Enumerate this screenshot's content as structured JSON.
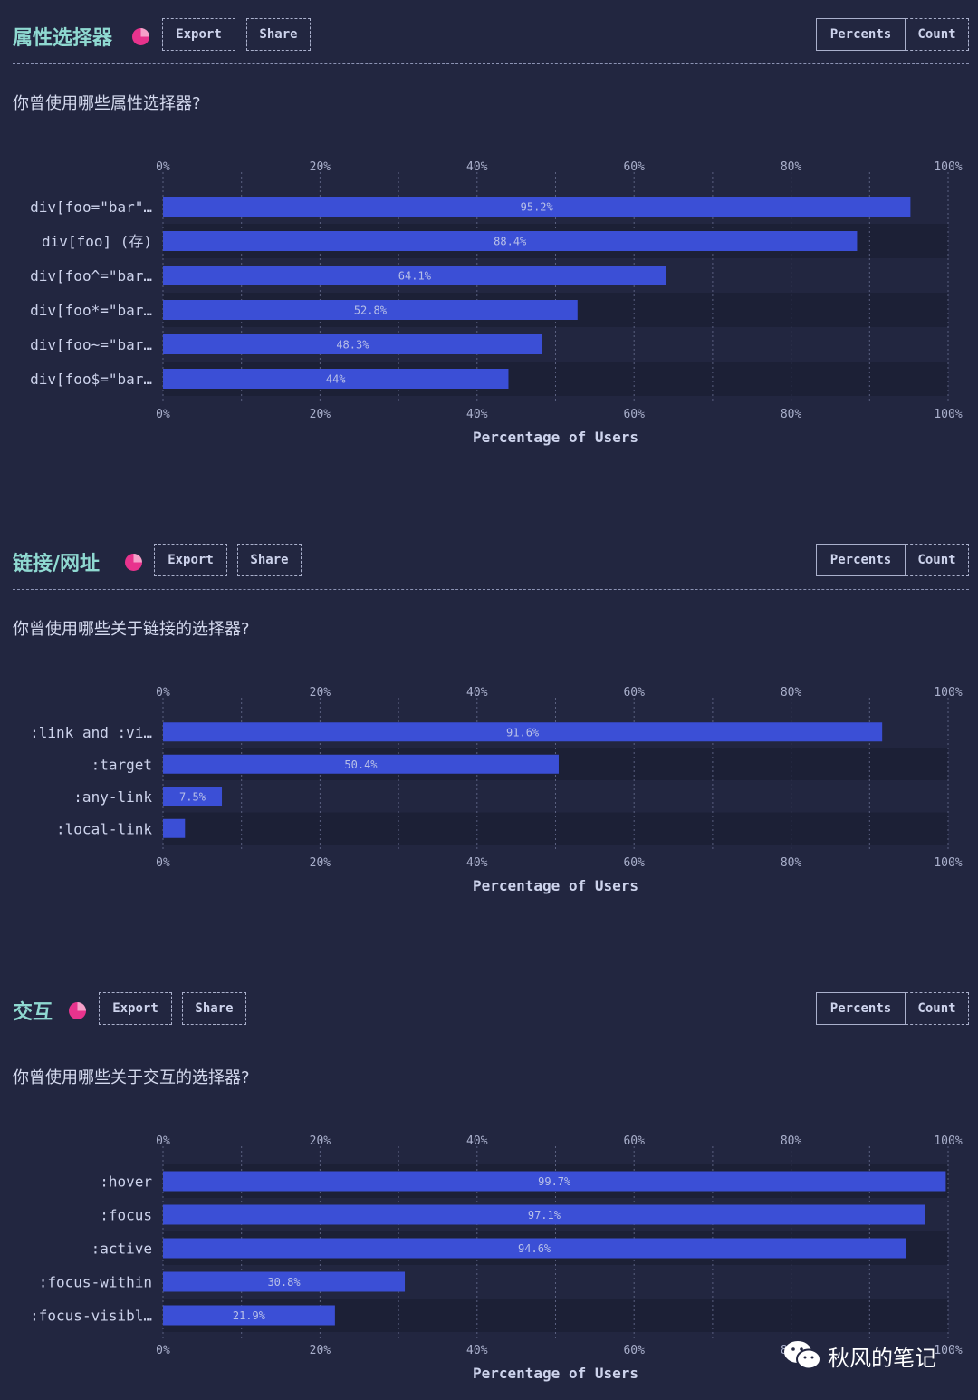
{
  "ui": {
    "export_label": "Export",
    "share_label": "Share",
    "percents_label": "Percents",
    "count_label": "Count",
    "watermark_text": "秋风的笔记",
    "watermark_icon": "wechat-icon",
    "title_icon": "pie-chart-icon"
  },
  "colors": {
    "background": "#222640",
    "bar": "#3b4fd6",
    "row_band": "#1c2036",
    "title": "#8fd9d1",
    "icon_pink": "#e8338d"
  },
  "sections": [
    {
      "title": "属性选择器",
      "question": "你曾使用哪些属性选择器?"
    },
    {
      "title": "链接/网址",
      "question": "你曾使用哪些关于链接的选择器?"
    },
    {
      "title": "交互",
      "question": "你曾使用哪些关于交互的选择器?"
    }
  ],
  "chart_data": [
    {
      "type": "bar",
      "orientation": "horizontal",
      "categories": [
        "div[foo=\"bar\"…",
        "div[foo] (存)",
        "div[foo^=\"bar…",
        "div[foo*=\"bar…",
        "div[foo~=\"bar…",
        "div[foo$=\"bar…"
      ],
      "values": [
        95.2,
        88.4,
        64.1,
        52.8,
        48.3,
        44
      ],
      "value_labels": [
        "95.2%",
        "88.4%",
        "64.1%",
        "52.8%",
        "48.3%",
        "44%"
      ],
      "xticks": [
        "0%",
        "20%",
        "40%",
        "60%",
        "80%",
        "100%"
      ],
      "xlim": [
        0,
        100
      ],
      "xlabel": "Percentage of Users",
      "grid": true
    },
    {
      "type": "bar",
      "orientation": "horizontal",
      "categories": [
        ":link and :vi…",
        ":target",
        ":any-link",
        ":local-link"
      ],
      "values": [
        91.6,
        50.4,
        7.5,
        2.8
      ],
      "value_labels": [
        "91.6%",
        "50.4%",
        "7.5%",
        ""
      ],
      "xticks": [
        "0%",
        "20%",
        "40%",
        "60%",
        "80%",
        "100%"
      ],
      "xlim": [
        0,
        100
      ],
      "xlabel": "Percentage of Users",
      "grid": true
    },
    {
      "type": "bar",
      "orientation": "horizontal",
      "categories": [
        ":hover",
        ":focus",
        ":active",
        ":focus-within",
        ":focus-visibl…"
      ],
      "values": [
        99.7,
        97.1,
        94.6,
        30.8,
        21.9
      ],
      "value_labels": [
        "99.7%",
        "97.1%",
        "94.6%",
        "30.8%",
        "21.9%"
      ],
      "xticks": [
        "0%",
        "20%",
        "40%",
        "60%",
        "80%",
        "100%"
      ],
      "xlim": [
        0,
        100
      ],
      "xlabel": "Percentage of Users",
      "grid": true
    }
  ]
}
